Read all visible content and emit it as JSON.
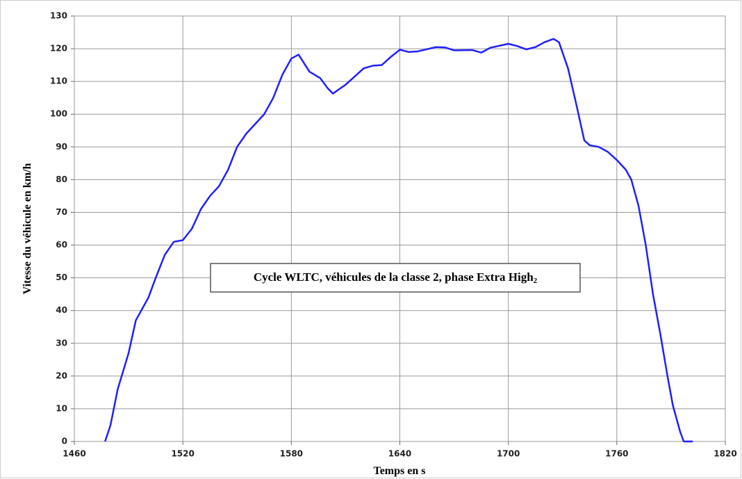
{
  "chart_data": {
    "type": "line",
    "xlabel": "Temps en s",
    "ylabel": "Vitesse du véhicule en km/h",
    "annotation": "Cycle WLTC, véhicules de la classe 2, phase Extra High",
    "annotation_sub": "2",
    "x": [
      1477,
      1480,
      1484,
      1490,
      1494,
      1501,
      1505,
      1510,
      1515,
      1520,
      1525,
      1530,
      1535,
      1540,
      1545,
      1550,
      1555,
      1560,
      1565,
      1570,
      1575,
      1580,
      1584,
      1590,
      1596,
      1600,
      1603,
      1610,
      1620,
      1625,
      1630,
      1635,
      1640,
      1645,
      1650,
      1660,
      1665,
      1670,
      1680,
      1685,
      1690,
      1700,
      1705,
      1710,
      1715,
      1720,
      1725,
      1728,
      1733,
      1738,
      1742,
      1745,
      1750,
      1755,
      1760,
      1765,
      1768,
      1772,
      1776,
      1780,
      1784,
      1788,
      1791,
      1795,
      1797,
      1802
    ],
    "series": [
      {
        "name": "Vitesse",
        "color": "#1f1fff",
        "values": [
          0,
          5,
          16,
          27,
          37,
          44,
          50,
          57,
          61,
          61.5,
          65,
          71,
          75,
          78,
          83,
          90,
          94,
          97,
          100,
          105,
          112,
          117,
          118.2,
          113,
          111,
          108,
          106.3,
          109,
          114,
          114.8,
          115,
          117.5,
          119.7,
          119,
          119.2,
          120.5,
          120.4,
          119.5,
          119.6,
          118.8,
          120.3,
          121.5,
          120.8,
          119.8,
          120.5,
          122,
          123,
          122,
          114,
          102,
          92,
          90.5,
          90,
          88.5,
          86,
          83,
          80,
          72,
          60,
          45,
          33,
          20,
          11,
          3,
          0,
          0
        ]
      }
    ],
    "xlim": [
      1460,
      1820
    ],
    "xticks": [
      1460,
      1520,
      1580,
      1640,
      1700,
      1760,
      1820
    ],
    "ylim": [
      0,
      130
    ],
    "yticks": [
      0,
      10,
      20,
      30,
      40,
      50,
      60,
      70,
      80,
      90,
      100,
      110,
      120,
      130
    ],
    "grid": true
  }
}
